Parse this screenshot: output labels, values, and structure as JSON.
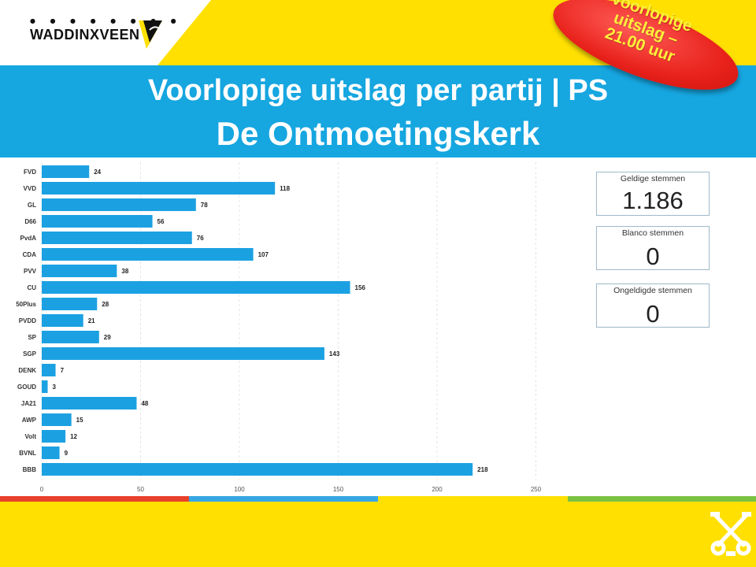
{
  "header": {
    "logo_text": "WADDINXVEEN",
    "logo_dots": "● ● ● ● ● ● ● ●",
    "title_line1": "Voorlopige uitslag per partij | PS",
    "title_line2": "De Ontmoetingskerk",
    "badge_text": "Voorlopige\nuitslag –\n21.00 uur"
  },
  "stats": [
    {
      "label": "Geldige stemmen",
      "value": "1.186"
    },
    {
      "label": "Blanco stemmen",
      "value": "0"
    },
    {
      "label": "Ongeldigde stemmen",
      "value": "0"
    }
  ],
  "colors": {
    "background": "#ffe000",
    "banner": "#16a6e0",
    "bar": "#1ba1e2",
    "badge": "#e8211b",
    "badge_text": "#ffef3a",
    "strip_red": "#e8402a",
    "strip_blue": "#35a7e5",
    "strip_yellow": "#ffe000",
    "strip_green": "#7cc242"
  },
  "chart_data": {
    "type": "bar",
    "orientation": "horizontal",
    "categories": [
      "FVD",
      "VVD",
      "GL",
      "D66",
      "PvdA",
      "CDA",
      "PVV",
      "CU",
      "50Plus",
      "PVDD",
      "SP",
      "SGP",
      "DENK",
      "GOUD",
      "JA21",
      "AWP",
      "Volt",
      "BVNL",
      "BBB"
    ],
    "values": [
      24,
      118,
      78,
      56,
      76,
      107,
      38,
      156,
      28,
      21,
      29,
      143,
      7,
      3,
      48,
      15,
      12,
      9,
      218
    ],
    "xticks": [
      0,
      50,
      100,
      150,
      200,
      250,
      300
    ],
    "xlim": [
      0,
      300
    ],
    "grid": "vertical",
    "data_labels": true
  }
}
